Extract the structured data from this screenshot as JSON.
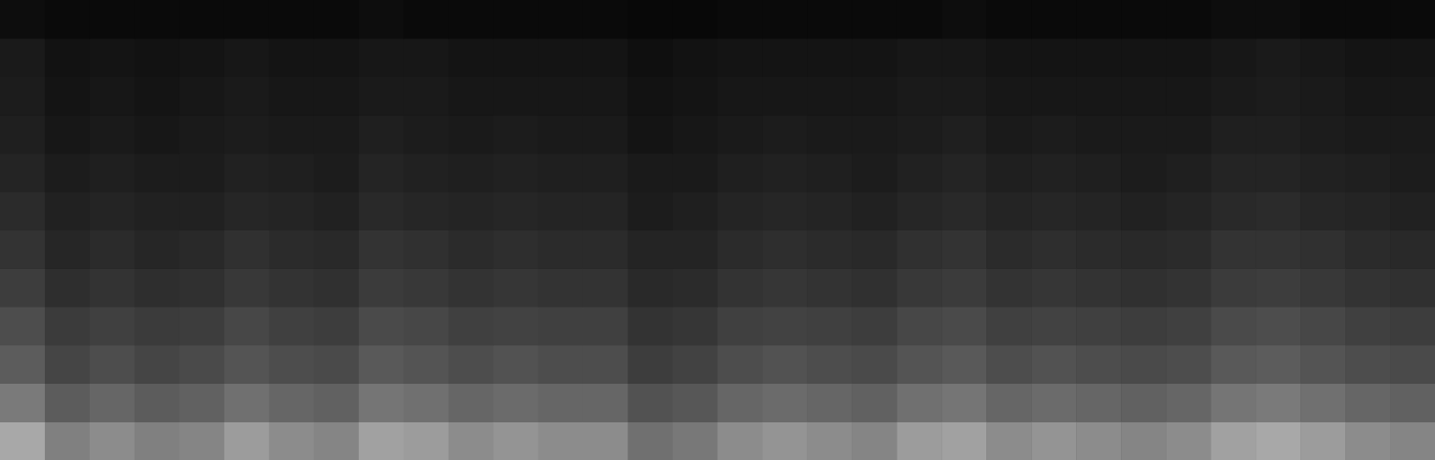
{
  "chart_data": {
    "type": "heatmap",
    "tick_labels": false,
    "xlim": [
      0,
      32
    ],
    "ylim": [
      0,
      12
    ],
    "color_range": [
      0,
      100
    ],
    "cells": [
      [
        66,
        50,
        55,
        50,
        52,
        61,
        55,
        52,
        63,
        61,
        55,
        58,
        55,
        55,
        44,
        47,
        55,
        58,
        55,
        52,
        61,
        63,
        55,
        58,
        55,
        52,
        55,
        63,
        66,
        61,
        55,
        52
      ],
      [
        48,
        36,
        40,
        36,
        38,
        44,
        40,
        38,
        46,
        44,
        40,
        42,
        40,
        40,
        32,
        34,
        40,
        42,
        40,
        38,
        44,
        46,
        40,
        42,
        40,
        38,
        40,
        46,
        48,
        44,
        40,
        38
      ],
      [
        36,
        27,
        30,
        27,
        29,
        33,
        30,
        29,
        35,
        33,
        30,
        32,
        30,
        30,
        24,
        26,
        30,
        32,
        30,
        29,
        33,
        35,
        30,
        32,
        30,
        29,
        30,
        35,
        36,
        33,
        30,
        29
      ],
      [
        30,
        23,
        25,
        23,
        24,
        28,
        25,
        24,
        29,
        28,
        25,
        26,
        25,
        25,
        20,
        21,
        25,
        26,
        25,
        24,
        28,
        29,
        25,
        26,
        25,
        24,
        25,
        29,
        30,
        28,
        25,
        24
      ],
      [
        24,
        18,
        20,
        18,
        19,
        22,
        20,
        19,
        23,
        22,
        20,
        21,
        20,
        20,
        16,
        17,
        20,
        21,
        20,
        19,
        22,
        23,
        20,
        21,
        20,
        19,
        20,
        23,
        24,
        22,
        20,
        19
      ],
      [
        20,
        15,
        17,
        15,
        16,
        19,
        17,
        16,
        20,
        19,
        17,
        18,
        17,
        17,
        14,
        14,
        17,
        18,
        17,
        16,
        19,
        20,
        17,
        18,
        17,
        16,
        17,
        20,
        20,
        19,
        17,
        16
      ],
      [
        17,
        13,
        14,
        13,
        13,
        15,
        14,
        13,
        16,
        15,
        14,
        15,
        14,
        14,
        11,
        12,
        14,
        15,
        14,
        13,
        15,
        16,
        14,
        15,
        14,
        13,
        14,
        16,
        17,
        15,
        14,
        13
      ],
      [
        14,
        11,
        12,
        11,
        11,
        13,
        12,
        11,
        14,
        13,
        12,
        13,
        12,
        12,
        10,
        10,
        12,
        13,
        12,
        11,
        13,
        14,
        12,
        13,
        12,
        11,
        12,
        14,
        14,
        13,
        12,
        11
      ],
      [
        12,
        9,
        10,
        9,
        10,
        11,
        10,
        10,
        12,
        11,
        10,
        11,
        10,
        10,
        8,
        9,
        10,
        11,
        10,
        10,
        11,
        12,
        10,
        11,
        10,
        10,
        10,
        12,
        12,
        11,
        10,
        10
      ],
      [
        11,
        8,
        9,
        8,
        9,
        10,
        9,
        9,
        10,
        10,
        9,
        9,
        9,
        9,
        7,
        8,
        9,
        9,
        9,
        9,
        10,
        10,
        9,
        9,
        9,
        9,
        9,
        10,
        11,
        10,
        9,
        9
      ],
      [
        10,
        7,
        8,
        7,
        8,
        9,
        8,
        8,
        9,
        9,
        8,
        8,
        8,
        8,
        6,
        7,
        8,
        8,
        8,
        8,
        9,
        9,
        8,
        8,
        8,
        8,
        8,
        9,
        10,
        9,
        8,
        8
      ],
      [
        5,
        4,
        4,
        4,
        4,
        4,
        4,
        4,
        5,
        4,
        4,
        4,
        4,
        4,
        3,
        3,
        4,
        4,
        4,
        4,
        4,
        5,
        4,
        4,
        4,
        4,
        4,
        5,
        5,
        4,
        4,
        4
      ]
    ]
  }
}
